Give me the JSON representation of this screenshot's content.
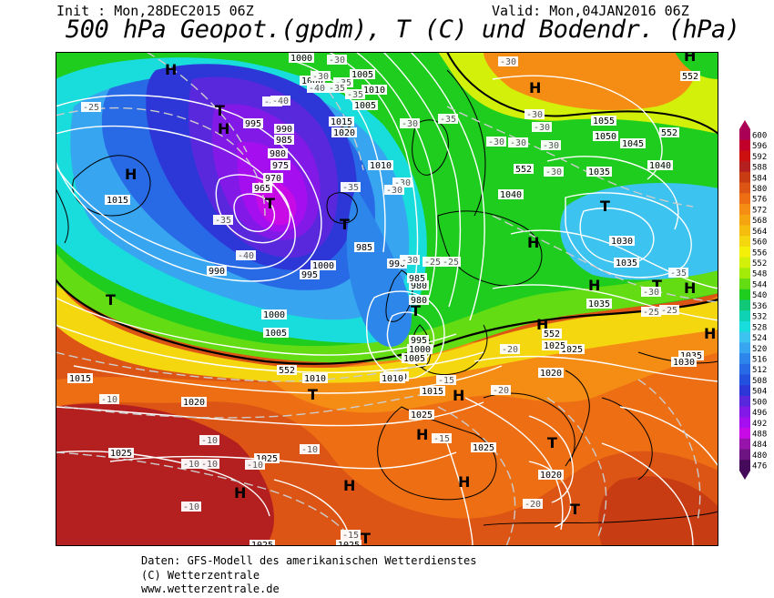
{
  "header": {
    "init": "Init : Mon,28DEC2015 06Z",
    "valid": "Valid: Mon,04JAN2016 06Z",
    "title": "500 hPa Geopot.(gpdm), T (C) und Bodendr. (hPa)"
  },
  "footer": {
    "line1": "Daten: GFS-Modell des amerikanischen Wetterdienstes",
    "line2": "(C) Wetterzentrale",
    "line3": "www.wetterzentrale.de"
  },
  "legend": {
    "values": [
      "600",
      "596",
      "592",
      "588",
      "584",
      "580",
      "576",
      "572",
      "568",
      "564",
      "560",
      "556",
      "552",
      "548",
      "544",
      "540",
      "536",
      "532",
      "528",
      "524",
      "520",
      "516",
      "512",
      "508",
      "504",
      "500",
      "496",
      "492",
      "488",
      "484",
      "480",
      "476"
    ],
    "colors": [
      "#aa0055",
      "#c0002a",
      "#cc1010",
      "#b42020",
      "#c83c14",
      "#dc5514",
      "#ee6e14",
      "#f58c14",
      "#f5a50f",
      "#f5be0f",
      "#f5d70f",
      "#f5f00a",
      "#d2f00a",
      "#a5eb0a",
      "#64dc14",
      "#1ecd1e",
      "#10c878",
      "#0fd2b4",
      "#19dcdc",
      "#3cc3f0",
      "#37a5f0",
      "#2d87eb",
      "#2869e6",
      "#2350dc",
      "#2d37d7",
      "#5a28dc",
      "#8219e6",
      "#a50ff0",
      "#c80ae6",
      "#9614aa",
      "#6e1482",
      "#460a5a"
    ]
  },
  "map": {
    "pressure_labels": [
      "1000",
      "1000",
      "1005",
      "1010",
      "1005",
      "1015",
      "1020",
      "995",
      "990",
      "985",
      "980",
      "975",
      "970",
      "965",
      "1015",
      "1010",
      "1000",
      "990",
      "995",
      "990",
      "985",
      "980",
      "985",
      "980",
      "995",
      "1000",
      "1005",
      "1010",
      "1005",
      "1000",
      "1015",
      "1010",
      "1010",
      "1015",
      "1020",
      "1025",
      "1025",
      "1025",
      "1025",
      "1020",
      "1020",
      "1025",
      "1035",
      "1030",
      "1035",
      "1040",
      "1040",
      "1045",
      "1050",
      "1055",
      "1035",
      "1035",
      "1030",
      "1025",
      "1025",
      "1025"
    ],
    "temp_labels": [
      "-30",
      "-35",
      "-40",
      "-40",
      "-30",
      "-25",
      "-35",
      "-35",
      "-40",
      "-30",
      "-30",
      "-30",
      "-30",
      "-30",
      "-30",
      "-30",
      "-30",
      "-35",
      "-30",
      "-30",
      "-35",
      "-35",
      "-40",
      "-35",
      "-30",
      "-25",
      "-30",
      "-25",
      "-25",
      "-25",
      "-20",
      "-20",
      "-15",
      "-15",
      "-10",
      "-10",
      "-10",
      "-10",
      "-10",
      "-10",
      "-15",
      "-20",
      "-10"
    ],
    "height_labels": [
      "552",
      "552",
      "552",
      "552",
      "552"
    ],
    "high_symbol": "H",
    "low_symbol": "T"
  }
}
